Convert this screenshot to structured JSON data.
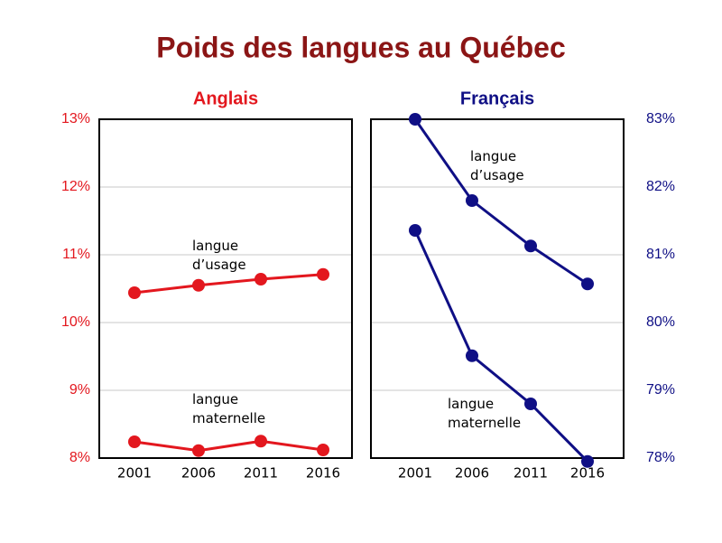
{
  "title": "Poids des langues au Québec",
  "chart_data": [
    {
      "type": "line",
      "title": "Anglais",
      "color": "#e3171e",
      "categories": [
        "2001",
        "2006",
        "2011",
        "2016"
      ],
      "series": [
        {
          "name": "langue d’usage",
          "color": "#e3171e",
          "values": [
            10.44,
            10.55,
            10.64,
            10.71
          ]
        },
        {
          "name": "langue maternelle",
          "color": "#e3171e",
          "values": [
            8.24,
            8.11,
            8.25,
            8.12
          ]
        }
      ],
      "ylim": [
        8,
        13
      ],
      "yticks": [
        {
          "value": 8,
          "label": "8%"
        },
        {
          "value": 9,
          "label": "9%"
        },
        {
          "value": 10,
          "label": "10%"
        },
        {
          "value": 11,
          "label": "11%"
        },
        {
          "value": 12,
          "label": "12%"
        },
        {
          "value": 13,
          "label": "13%"
        }
      ],
      "y_axis_side": "left",
      "grid": true
    },
    {
      "type": "line",
      "title": "Français",
      "color": "#0f0f85",
      "categories": [
        "2001",
        "2006",
        "2011",
        "2016"
      ],
      "series": [
        {
          "name": "langue d’usage",
          "color": "#0f0f85",
          "values": [
            83.0,
            81.8,
            81.13,
            80.57
          ]
        },
        {
          "name": "langue maternelle",
          "color": "#0f0f85",
          "values": [
            81.36,
            79.51,
            78.8,
            77.95
          ]
        }
      ],
      "ylim": [
        78,
        83
      ],
      "yticks": [
        {
          "value": 78,
          "label": "78%"
        },
        {
          "value": 79,
          "label": "79%"
        },
        {
          "value": 80,
          "label": "80%"
        },
        {
          "value": 81,
          "label": "81%"
        },
        {
          "value": 82,
          "label": "82%"
        },
        {
          "value": 83,
          "label": "83%"
        }
      ],
      "y_axis_side": "right",
      "grid": true
    }
  ]
}
